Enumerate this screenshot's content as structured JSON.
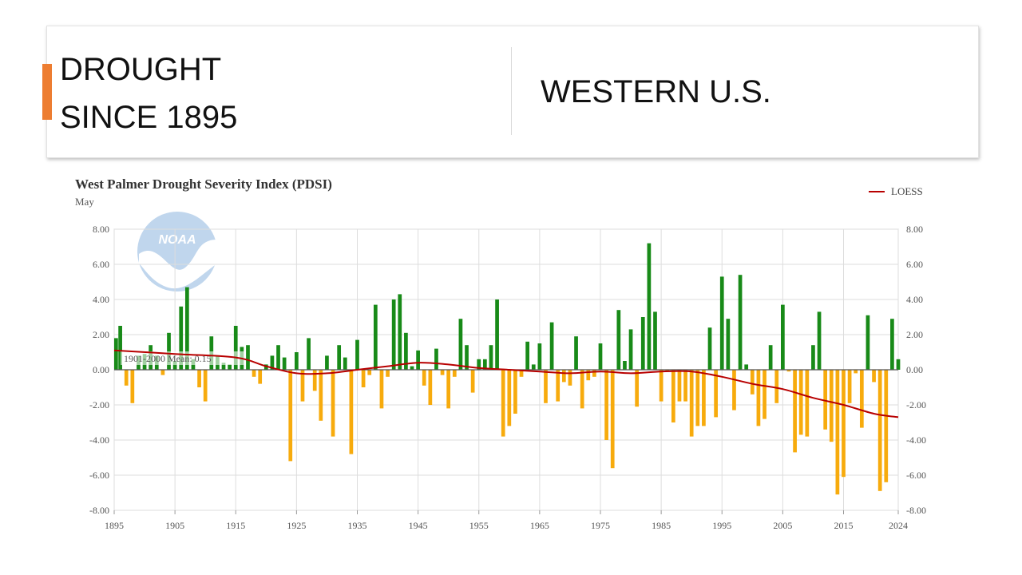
{
  "header": {
    "title_line1": "DROUGHT",
    "title_line2": "SINCE 1895",
    "region": "WESTERN U.S."
  },
  "colors": {
    "accent": "#ED7D31",
    "positive": "#188a18",
    "negative": "#f7ab0d",
    "loess": "#b80000"
  },
  "chart_data": {
    "type": "bar",
    "title": "West Palmer Drought Severity Index (PDSI)",
    "subtitle": "May",
    "legend_label": "LOESS",
    "legend_position": "top-right",
    "mean_label": "1901-2000 Mean: 0.15",
    "xlim": [
      1895,
      2024
    ],
    "ylim": [
      -8,
      8
    ],
    "x_ticks": [
      "1895",
      "1905",
      "1915",
      "1925",
      "1935",
      "1945",
      "1955",
      "1965",
      "1975",
      "1985",
      "1995",
      "2005",
      "2015",
      "2024"
    ],
    "y_ticks": [
      "8.00",
      "6.00",
      "4.00",
      "2.00",
      "0.00",
      "-2.00",
      "-4.00",
      "-6.00",
      "-8.00"
    ],
    "years_start": 1895,
    "values": [
      1.8,
      2.5,
      -0.9,
      -1.9,
      0.8,
      0.9,
      1.4,
      0.8,
      -0.3,
      2.1,
      0.5,
      3.6,
      4.7,
      0.6,
      -1.0,
      -1.8,
      1.9,
      0.8,
      0.4,
      0.3,
      2.5,
      1.3,
      1.4,
      -0.4,
      -0.8,
      0.3,
      0.8,
      1.4,
      0.7,
      -5.2,
      1.0,
      -1.8,
      1.8,
      -1.2,
      -2.9,
      0.8,
      -3.8,
      1.4,
      0.7,
      -4.8,
      1.7,
      -1.0,
      -0.3,
      3.7,
      -2.2,
      -0.4,
      4.0,
      4.3,
      2.1,
      0.2,
      1.1,
      -0.9,
      -2.0,
      1.2,
      -0.3,
      -2.2,
      -0.4,
      2.9,
      1.4,
      -1.3,
      0.6,
      0.6,
      1.4,
      4.0,
      -3.8,
      -3.2,
      -2.5,
      -0.4,
      1.6,
      0.3,
      1.5,
      -1.9,
      2.7,
      -1.8,
      -0.7,
      -0.9,
      1.9,
      -2.2,
      -0.6,
      -0.4,
      1.5,
      -4.0,
      -5.6,
      3.4,
      0.5,
      2.3,
      -2.1,
      3.0,
      7.2,
      3.3,
      -1.8,
      -0.1,
      -3.0,
      -1.8,
      -1.8,
      -3.8,
      -3.2,
      -3.2,
      2.4,
      -2.7,
      5.3,
      2.9,
      -2.3,
      5.4,
      0.3,
      -1.4,
      -3.2,
      -2.8,
      1.4,
      -1.9,
      3.7,
      -0.1,
      -4.7,
      -3.7,
      -3.8,
      1.4,
      3.3,
      -3.4,
      -4.1,
      -7.1,
      -6.1,
      -1.9,
      -0.2,
      -3.3,
      3.1,
      -0.7,
      -6.9,
      -6.4,
      2.9,
      0.6
    ],
    "loess": [
      [
        1895,
        1.1
      ],
      [
        1905,
        0.9
      ],
      [
        1915,
        0.7
      ],
      [
        1920,
        0.2
      ],
      [
        1925,
        -0.2
      ],
      [
        1930,
        -0.2
      ],
      [
        1935,
        0.0
      ],
      [
        1940,
        0.2
      ],
      [
        1945,
        0.4
      ],
      [
        1950,
        0.3
      ],
      [
        1955,
        0.1
      ],
      [
        1960,
        0.0
      ],
      [
        1965,
        -0.1
      ],
      [
        1970,
        -0.2
      ],
      [
        1975,
        -0.1
      ],
      [
        1980,
        -0.2
      ],
      [
        1985,
        -0.1
      ],
      [
        1990,
        -0.1
      ],
      [
        1995,
        -0.4
      ],
      [
        2000,
        -0.8
      ],
      [
        2005,
        -1.1
      ],
      [
        2010,
        -1.6
      ],
      [
        2015,
        -2.0
      ],
      [
        2020,
        -2.5
      ],
      [
        2024,
        -2.7
      ]
    ]
  }
}
